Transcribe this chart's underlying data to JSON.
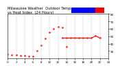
{
  "title": "Milwaukee Weather  Outdoor Temp...",
  "background_color": "#ffffff",
  "plot_bg_color": "#ffffff",
  "grid_color": "#aaaaaa",
  "xlim": [
    0,
    24
  ],
  "ylim": [
    20,
    80
  ],
  "yticks": [
    30,
    40,
    50,
    60,
    70,
    80
  ],
  "ytick_labels": [
    "30",
    "40",
    "50",
    "60",
    "70",
    "80"
  ],
  "xticks": [
    0,
    2,
    4,
    6,
    8,
    10,
    12,
    14,
    16,
    18,
    20,
    22,
    24
  ],
  "xtick_labels": [
    "0",
    "2",
    "4",
    "6",
    "8",
    "10",
    "12",
    "14",
    "16",
    "18",
    "20",
    "22",
    "24"
  ],
  "temp_x": [
    0,
    1,
    2,
    3,
    4,
    5,
    6,
    7,
    8,
    9,
    10,
    11,
    12,
    13
  ],
  "temp_y": [
    25.5,
    25.0,
    24.5,
    24.0,
    23.5,
    23.0,
    23.0,
    30.0,
    38.0,
    47.0,
    55.0,
    60.0,
    63.0,
    62.0
  ],
  "heat_x": [
    13,
    14,
    15,
    16,
    17,
    18,
    19,
    20,
    21,
    22
  ],
  "heat_y": [
    47.5,
    47.5,
    47.5,
    47.5,
    47.5,
    47.5,
    47.5,
    47.5,
    50.5,
    47.5
  ],
  "single_dot_x": [
    14
  ],
  "single_dot_y": [
    36
  ],
  "temp_color": "#ff0000",
  "heat_color": "#ff0000",
  "legend_blue_color": "#0000ff",
  "legend_red_color": "#ff0000",
  "marker_size": 1.5,
  "title_fontsize": 3.8,
  "tick_fontsize": 3.0
}
